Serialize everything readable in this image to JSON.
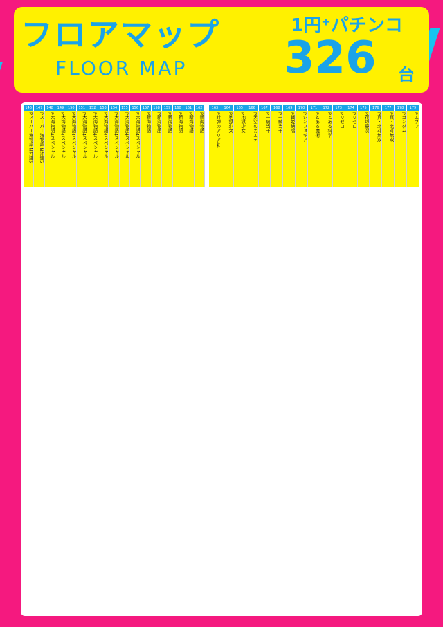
{
  "header": {
    "title_jp": "フロアマップ",
    "title_en": "FLOOR MAP",
    "subtitle": "1円⁺パチンコ",
    "count": "326",
    "count_unit": "台"
  },
  "colors": {
    "pink": "#f5197f",
    "yellow": "#fff100",
    "blue": "#1aa3e8"
  },
  "map": {
    "blocks": [
      {
        "nums": [
          "146",
          "147",
          "148",
          "149",
          "150",
          "151",
          "152",
          "153",
          "154",
          "155",
          "156",
          "157",
          "158",
          "159",
          "160",
          "161",
          "162"
        ],
        "labels": [
          "Pスーパー海物語IN沖縄5",
          "Pスーパー海物語IN沖縄5",
          "P大海物語4スペシャル",
          "P大海物語4スペシャル",
          "P大海物語4スペシャル",
          "P大海物語4スペシャル",
          "P大海物語4スペシャル",
          "P大海物語4スペシャル",
          "P大海物語4スペシャル",
          "P大海物語4スペシャル",
          "P大海物語4スペシャル",
          "P新海物語",
          "P新海物語",
          "P新海物語",
          "P新海物語",
          "P新海物語",
          "P新海物語"
        ]
      },
      {
        "nums": [
          "163",
          "164",
          "165",
          "166",
          "167",
          "168",
          "169",
          "170",
          "171",
          "172",
          "173",
          "174",
          "175",
          "176",
          "177",
          "178",
          "179"
        ],
        "labels": [
          "P緋弾のアリアAA",
          "P地獄少女",
          "P地獄少女",
          "P天空のカエデ",
          "P一騎当千",
          "P一騎当千",
          "P戦姫絶唱",
          "Pシンフォギア",
          "Pとある魔術",
          "Pとある科学",
          "Pリゼロ",
          "Pリゼロ",
          "P花の慶次",
          "P真・北斗無双",
          "P真・北斗無双",
          "Pガンダム",
          "Pエヴァ"
        ]
      }
    ]
  }
}
